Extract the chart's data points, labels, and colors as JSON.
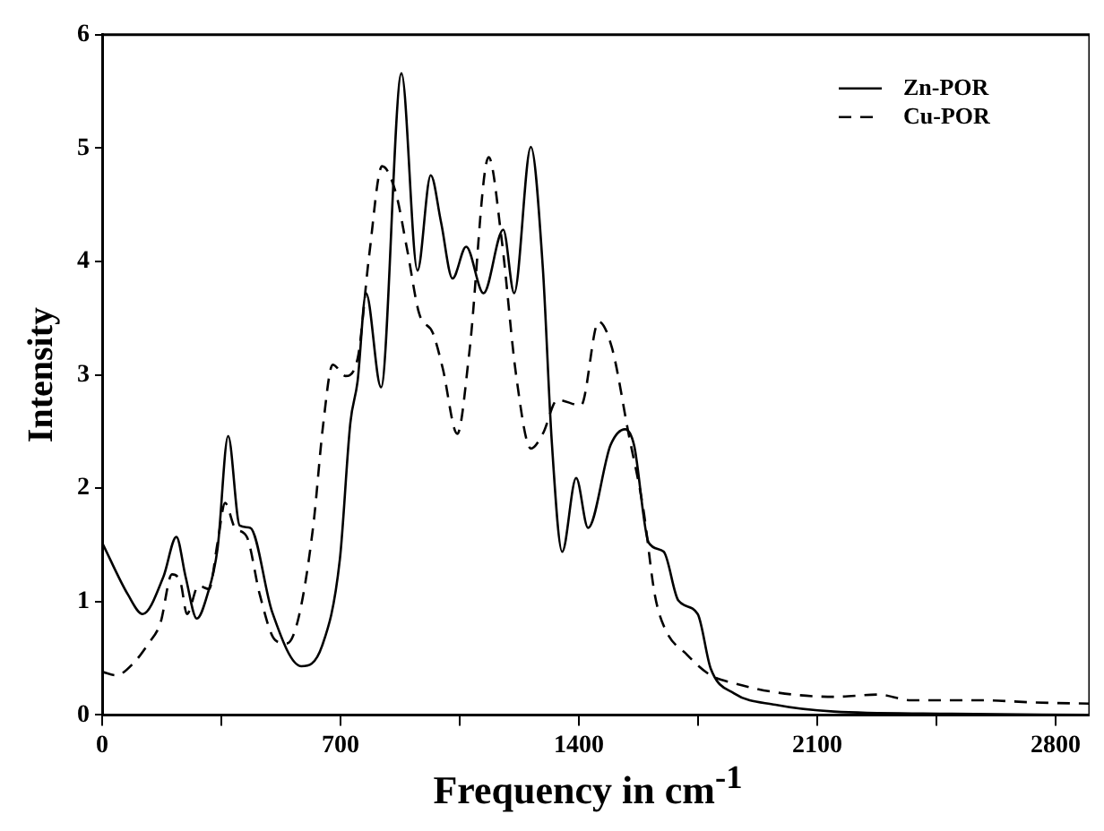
{
  "chart_data": {
    "type": "line",
    "xlabel": "Frequency in cm$^{-1}$",
    "ylabel": "Intensity",
    "xlim": [
      0,
      2900
    ],
    "ylim": [
      0,
      6
    ],
    "xticks": [
      0,
      {
        "value": 350,
        "label": null
      },
      700,
      {
        "value": 1050,
        "label": null
      },
      1400,
      {
        "value": 1750,
        "label": null
      },
      2100,
      {
        "value": 2450,
        "label": null
      },
      2800
    ],
    "yticks": [
      0,
      1,
      2,
      3,
      4,
      5,
      6
    ],
    "grid": false,
    "legend": "top right",
    "marker": "none",
    "series": [
      {
        "name": "Zn-POR",
        "color": "#000000",
        "line_style": "solid",
        "x": [
          0,
          76,
          119,
          180,
          218,
          245,
          278,
          309,
          339,
          370,
          404,
          435,
          499,
          585,
          646,
          698,
          729,
          750,
          775,
          819,
          879,
          926,
          965,
          995,
          1029,
          1069,
          1120,
          1178,
          1210,
          1259,
          1294,
          1320,
          1351,
          1392,
          1427,
          1493,
          1536,
          1562,
          1605,
          1649,
          1692,
          1749,
          1787,
          1856,
          1977,
          2149,
          2495,
          2900
        ],
        "values": [
          1.52,
          1.06,
          0.89,
          1.22,
          1.57,
          1.22,
          0.85,
          1.06,
          1.47,
          2.46,
          1.67,
          1.65,
          0.91,
          0.43,
          0.61,
          1.37,
          2.58,
          2.94,
          3.72,
          2.89,
          5.66,
          3.92,
          4.76,
          4.35,
          3.85,
          4.13,
          3.72,
          4.28,
          3.72,
          5.01,
          3.95,
          2.43,
          1.44,
          2.09,
          1.65,
          2.38,
          2.52,
          2.38,
          1.52,
          1.44,
          1.01,
          0.89,
          0.41,
          0.19,
          0.09,
          0.03,
          0.01,
          0.0
        ]
      },
      {
        "name": "Cu-POR",
        "color": "#000000",
        "line_style": "dashed",
        "x": [
          0,
          41,
          93,
          136,
          171,
          205,
          231,
          249,
          283,
          314,
          339,
          361,
          390,
          425,
          463,
          508,
          542,
          577,
          620,
          649,
          677,
          715,
          750,
          784,
          822,
          862,
          896,
          931,
          971,
          1000,
          1043,
          1078,
          1135,
          1173,
          1216,
          1259,
          1294,
          1337,
          1406,
          1458,
          1497,
          1546,
          1589,
          1623,
          1653,
          1718,
          1787,
          1856,
          1977,
          2149,
          2279,
          2374,
          2581,
          2737,
          2900
        ],
        "values": [
          0.38,
          0.35,
          0.46,
          0.63,
          0.81,
          1.24,
          1.16,
          0.89,
          1.14,
          1.11,
          1.52,
          1.87,
          1.65,
          1.57,
          1.06,
          0.66,
          0.63,
          0.86,
          1.67,
          2.56,
          3.09,
          2.99,
          3.14,
          4.05,
          4.84,
          4.61,
          4.1,
          3.54,
          3.37,
          3.06,
          2.48,
          3.19,
          4.92,
          4.2,
          2.99,
          2.35,
          2.48,
          2.78,
          2.73,
          3.47,
          3.24,
          2.48,
          1.82,
          1.06,
          0.76,
          0.53,
          0.35,
          0.28,
          0.2,
          0.16,
          0.18,
          0.13,
          0.13,
          0.11,
          0.1
        ]
      }
    ]
  }
}
